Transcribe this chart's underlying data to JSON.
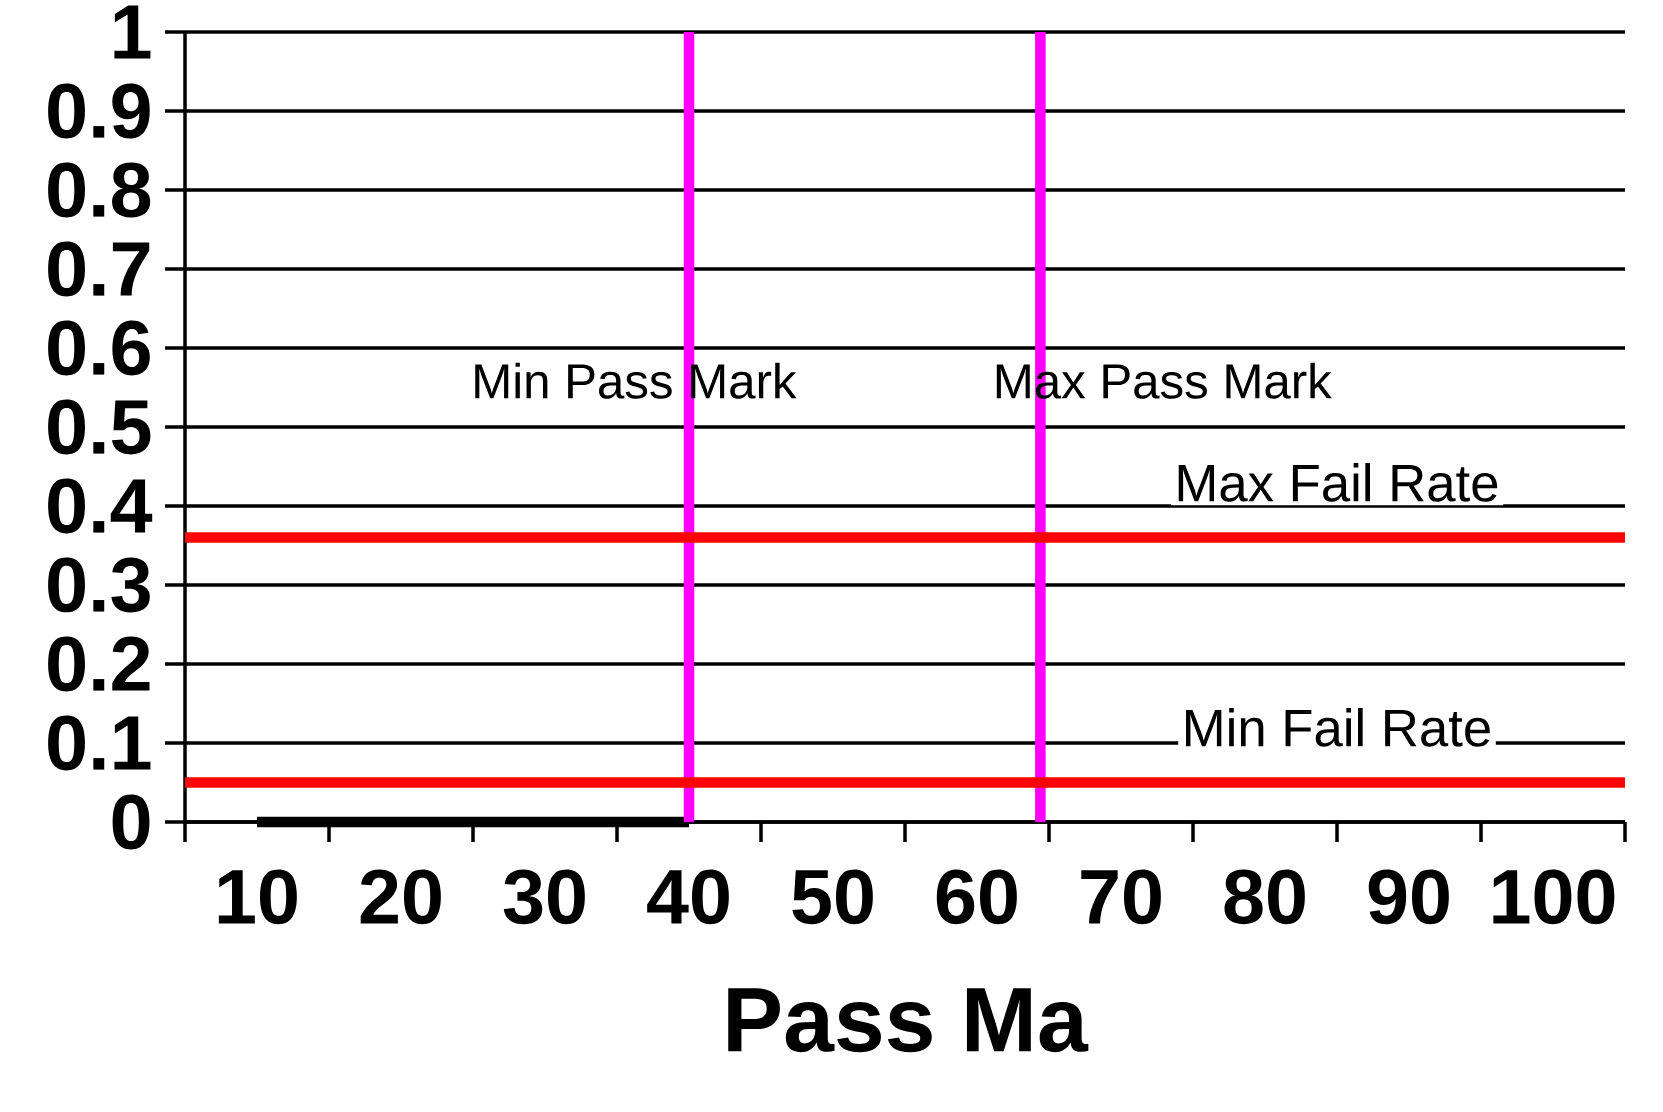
{
  "chart_data": {
    "type": "line",
    "xlabel": "Pass Ma",
    "xlim": [
      5,
      105
    ],
    "ylim": [
      0,
      1
    ],
    "xticks": [
      10,
      20,
      30,
      40,
      50,
      60,
      70,
      80,
      90,
      100
    ],
    "yticks": [
      0,
      0.1,
      0.2,
      0.3,
      0.4,
      0.5,
      0.6,
      0.7,
      0.8,
      0.9,
      1
    ],
    "series": [
      {
        "color": "#000000",
        "x": [
          10,
          40
        ],
        "values": [
          0,
          0
        ]
      }
    ],
    "ref_lines": [
      {
        "axis": "x",
        "value": 40,
        "label": "Min Pass Mark",
        "color": "#ff00ff"
      },
      {
        "axis": "x",
        "value": 64.4,
        "label": "Max Pass Mark",
        "color": "#ff00ff"
      },
      {
        "axis": "y",
        "value": 0.36,
        "label": "Max Fail Rate",
        "color": "#ff0000"
      },
      {
        "axis": "y",
        "value": 0.05,
        "label": "Min Fail Rate",
        "color": "#ff0000"
      }
    ],
    "grid": "y",
    "marker": "none",
    "line_style": "solid"
  }
}
